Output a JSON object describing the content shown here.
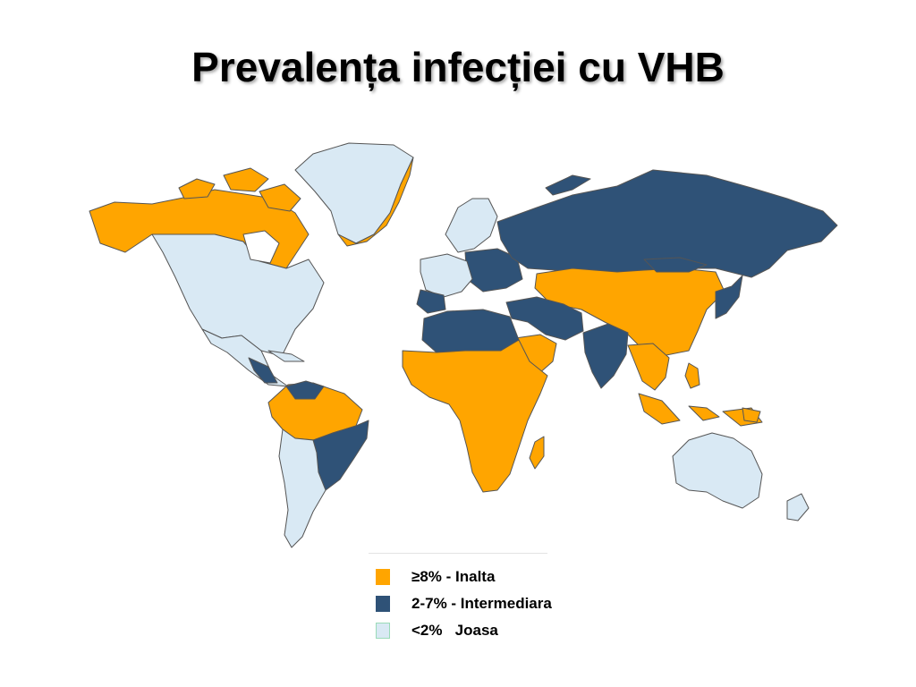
{
  "title": "Prevalența  infecției cu VHB",
  "legend": [
    {
      "label": "≥8% - Inalta",
      "color": "#ffa500",
      "border": "#ffa500"
    },
    {
      "label": "2-7% - Intermediara",
      "color": "#2f5277",
      "border": "#2f5277"
    },
    {
      "label": "<2%   Joasa",
      "color": "#d9e9f4",
      "border": "#9adbb8"
    }
  ],
  "colors": {
    "high": "#ffa500",
    "intermediate": "#2f5277",
    "low": "#d9e9f4",
    "border": "#555555"
  }
}
